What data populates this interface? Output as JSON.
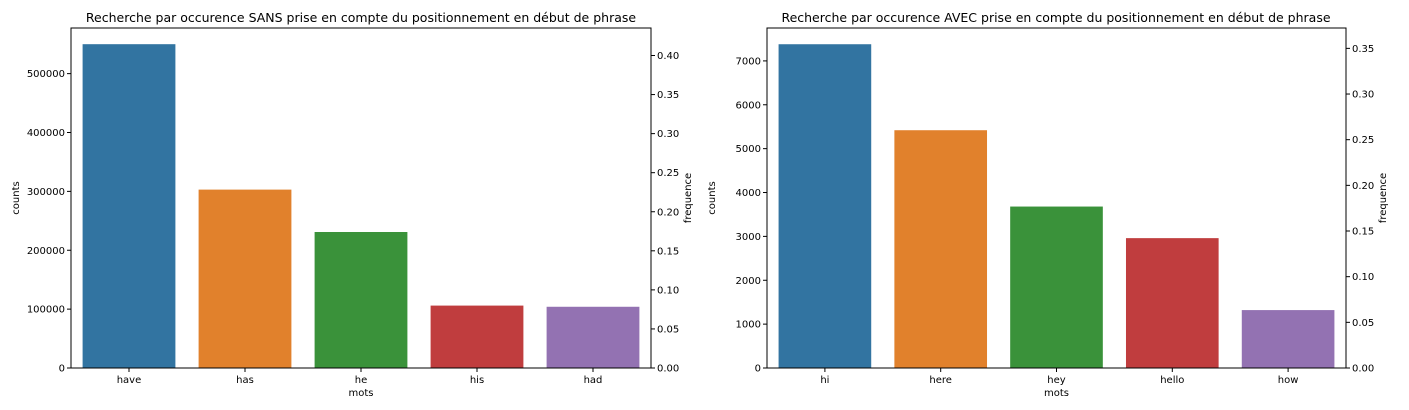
{
  "chart_data": [
    {
      "type": "bar",
      "title": "Recherche par occurence SANS prise en compte du positionnement en début de phrase",
      "xlabel": "mots",
      "ylabel": "counts",
      "ylabel_right": "frequence",
      "categories": [
        "have",
        "has",
        "he",
        "his",
        "had"
      ],
      "values": [
        550000,
        303000,
        231000,
        106000,
        104000
      ],
      "colors": [
        "#3274a1",
        "#e1812c",
        "#3a923a",
        "#c03d3e",
        "#9372b2"
      ],
      "ylim": [
        0,
        577500
      ],
      "yticks": [
        0,
        100000,
        200000,
        300000,
        400000,
        500000
      ],
      "ylim_right": [
        0,
        0.4352
      ],
      "yticks_right": [
        "0.00",
        "0.05",
        "0.10",
        "0.15",
        "0.20",
        "0.25",
        "0.30",
        "0.35",
        "0.40"
      ],
      "grid": false
    },
    {
      "type": "bar",
      "title": "Recherche par occurence AVEC prise en compte du positionnement en début de phrase",
      "xlabel": "mots",
      "ylabel": "counts",
      "ylabel_right": "frequence",
      "categories": [
        "hi",
        "here",
        "hey",
        "hello",
        "how"
      ],
      "values": [
        7380,
        5420,
        3680,
        2960,
        1320
      ],
      "colors": [
        "#3274a1",
        "#e1812c",
        "#3a923a",
        "#c03d3e",
        "#9372b2"
      ],
      "ylim": [
        0,
        7750
      ],
      "yticks": [
        0,
        1000,
        2000,
        3000,
        4000,
        5000,
        6000,
        7000
      ],
      "ylim_right": [
        0,
        0.3723
      ],
      "yticks_right": [
        "0.00",
        "0.05",
        "0.10",
        "0.15",
        "0.20",
        "0.25",
        "0.30",
        "0.35"
      ],
      "grid": false
    }
  ]
}
